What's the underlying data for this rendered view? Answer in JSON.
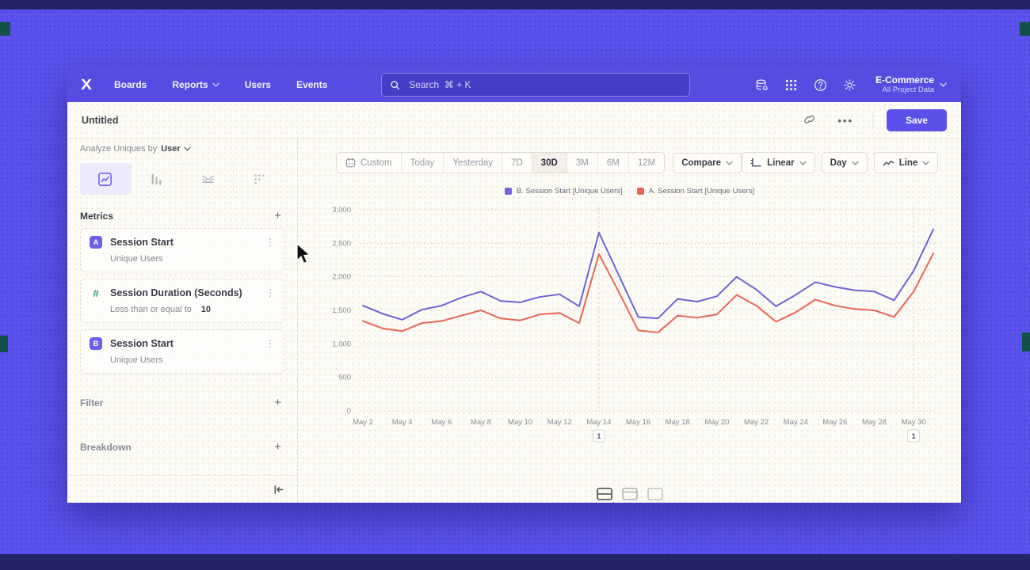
{
  "nav": {
    "logo": "X",
    "items": [
      {
        "label": "Boards",
        "caret": false
      },
      {
        "label": "Reports",
        "caret": true
      },
      {
        "label": "Users",
        "caret": false
      },
      {
        "label": "Events",
        "caret": false
      }
    ],
    "search_placeholder": "Search  ⌘ + K",
    "project": {
      "name": "E-Commerce",
      "subtitle": "All Project Data"
    }
  },
  "toolbar": {
    "title": "Untitled",
    "more_label": "•••",
    "save_label": "Save"
  },
  "sidebar": {
    "analyze_prefix": "Analyze Uniques by",
    "analyze_value": "User",
    "metrics_header": "Metrics",
    "metrics": [
      {
        "badge": "A",
        "badge_color": "#6c5fe8",
        "badge_text_color": "#ffffff",
        "title": "Session Start",
        "subtitle": "Unique Users",
        "value": ""
      },
      {
        "badge": "#",
        "badge_color": "transparent",
        "badge_text_color": "#2ea673",
        "title": "Session Duration (Seconds)",
        "subtitle": "Less than or equal to",
        "value": "10"
      },
      {
        "badge": "B",
        "badge_color": "#6c5fe8",
        "badge_text_color": "#ffffff",
        "title": "Session Start",
        "subtitle": "Unique Users",
        "value": ""
      }
    ],
    "sections": [
      {
        "label": "Filter"
      },
      {
        "label": "Breakdown"
      }
    ]
  },
  "controls": {
    "date_ranges": [
      "Custom",
      "Today",
      "Yesterday",
      "7D",
      "30D",
      "3M",
      "6M",
      "12M"
    ],
    "selected_range": "30D",
    "compare_label": "Compare",
    "scale_label": "Linear",
    "interval_label": "Day",
    "charttype_label": "Line"
  },
  "chart_data": {
    "type": "line",
    "x": [
      "May 2",
      "May 3",
      "May 4",
      "May 5",
      "May 6",
      "May 7",
      "May 8",
      "May 9",
      "May 10",
      "May 11",
      "May 12",
      "May 13",
      "May 14",
      "May 15",
      "May 16",
      "May 17",
      "May 18",
      "May 19",
      "May 20",
      "May 21",
      "May 22",
      "May 23",
      "May 24",
      "May 25",
      "May 26",
      "May 27",
      "May 28",
      "May 29",
      "May 30",
      "May 31"
    ],
    "x_label_every": 2,
    "series": [
      {
        "name": "B. Session Start [Unique Users]",
        "color": "#6f63d8",
        "values": [
          1570,
          1450,
          1360,
          1510,
          1570,
          1690,
          1780,
          1640,
          1620,
          1700,
          1740,
          1560,
          2660,
          2030,
          1400,
          1380,
          1670,
          1630,
          1710,
          2000,
          1810,
          1560,
          1730,
          1920,
          1850,
          1800,
          1780,
          1650,
          2090,
          2710
        ]
      },
      {
        "name": "A. Session Start [Unique Users]",
        "color": "#ea6652",
        "values": [
          1340,
          1230,
          1190,
          1310,
          1340,
          1420,
          1500,
          1380,
          1350,
          1440,
          1460,
          1310,
          2340,
          1780,
          1200,
          1170,
          1420,
          1390,
          1440,
          1730,
          1570,
          1330,
          1470,
          1660,
          1570,
          1520,
          1500,
          1400,
          1780,
          2350
        ]
      }
    ],
    "ylim": [
      0,
      3000
    ],
    "yticks": [
      0,
      500,
      1000,
      1500,
      2000,
      2500,
      3000
    ],
    "ytick_labels": [
      "0",
      "500",
      "1,000",
      "1,500",
      "2,000",
      "2,500",
      "3,000"
    ],
    "annotations": [
      {
        "x": "May 14",
        "label": "1"
      },
      {
        "x": "May 30",
        "label": "1"
      }
    ],
    "grid": "horizontal-dotted",
    "legend_position": "top-center"
  }
}
